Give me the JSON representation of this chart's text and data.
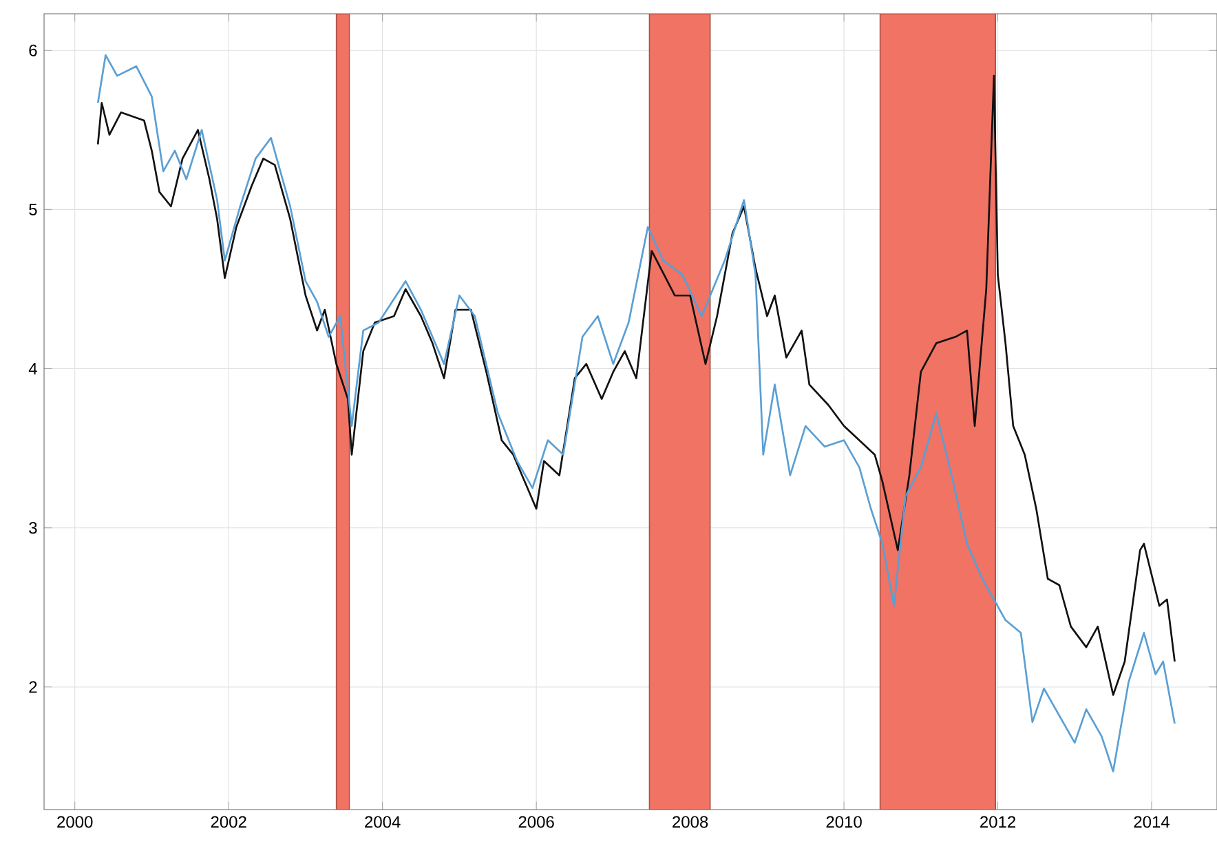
{
  "chart_data": {
    "type": "line",
    "xlim": [
      1999.6,
      2014.85
    ],
    "ylim": [
      1.23,
      6.23
    ],
    "xticks": [
      2000,
      2002,
      2004,
      2006,
      2008,
      2010,
      2012,
      2014
    ],
    "yticks": [
      2,
      3,
      4,
      5,
      6
    ],
    "grid": true,
    "bands": [
      {
        "axis": "x",
        "from": 2003.4,
        "to": 2003.57,
        "color": "#f07364"
      },
      {
        "axis": "x",
        "from": 2007.47,
        "to": 2008.26,
        "color": "#f07364"
      },
      {
        "axis": "x",
        "from": 2010.47,
        "to": 2011.97,
        "color": "#f07364"
      }
    ],
    "series": [
      {
        "color": "#111111",
        "x": [
          2000.3,
          2000.35,
          2000.45,
          2000.6,
          2000.9,
          2001.0,
          2001.1,
          2001.25,
          2001.4,
          2001.6,
          2001.75,
          2001.85,
          2001.95,
          2002.1,
          2002.3,
          2002.45,
          2002.6,
          2002.8,
          2003.0,
          2003.15,
          2003.25,
          2003.4,
          2003.55,
          2003.6,
          2003.75,
          2003.9,
          2004.15,
          2004.3,
          2004.5,
          2004.65,
          2004.8,
          2004.95,
          2005.15,
          2005.35,
          2005.55,
          2005.7,
          2005.85,
          2006.0,
          2006.1,
          2006.3,
          2006.5,
          2006.65,
          2006.85,
          2007.0,
          2007.15,
          2007.3,
          2007.5,
          2007.8,
          2008.0,
          2008.2,
          2008.35,
          2008.55,
          2008.7,
          2008.85,
          2009.0,
          2009.1,
          2009.25,
          2009.45,
          2009.55,
          2009.8,
          2010.0,
          2010.2,
          2010.4,
          2010.5,
          2010.7,
          2010.85,
          2011.0,
          2011.2,
          2011.45,
          2011.6,
          2011.7,
          2011.85,
          2011.95,
          2012.0,
          2012.1,
          2012.2,
          2012.35,
          2012.5,
          2012.65,
          2012.8,
          2012.95,
          2013.15,
          2013.3,
          2013.5,
          2013.65,
          2013.85,
          2013.9,
          2014.1,
          2014.2,
          2014.3
        ],
        "values": [
          5.41,
          5.67,
          5.47,
          5.61,
          5.56,
          5.37,
          5.11,
          5.02,
          5.32,
          5.5,
          5.19,
          4.94,
          4.57,
          4.89,
          5.15,
          5.32,
          5.28,
          4.94,
          4.46,
          4.24,
          4.37,
          4.03,
          3.81,
          3.46,
          4.11,
          4.29,
          4.33,
          4.5,
          4.33,
          4.16,
          3.94,
          4.37,
          4.37,
          3.98,
          3.55,
          3.46,
          3.29,
          3.12,
          3.42,
          3.33,
          3.94,
          4.03,
          3.81,
          3.98,
          4.11,
          3.94,
          4.74,
          4.46,
          4.46,
          4.03,
          4.33,
          4.85,
          5.02,
          4.63,
          4.33,
          4.46,
          4.07,
          4.24,
          3.9,
          3.77,
          3.64,
          3.55,
          3.46,
          3.29,
          2.86,
          3.33,
          3.98,
          4.16,
          4.2,
          4.24,
          3.64,
          4.5,
          5.84,
          4.59,
          4.16,
          3.64,
          3.46,
          3.12,
          2.68,
          2.64,
          2.38,
          2.25,
          2.38,
          1.95,
          2.16,
          2.86,
          2.9,
          2.51,
          2.55,
          2.16
        ]
      },
      {
        "color": "#5a9fd4",
        "x": [
          2000.3,
          2000.4,
          2000.55,
          2000.8,
          2001.0,
          2001.15,
          2001.3,
          2001.45,
          2001.65,
          2001.85,
          2001.95,
          2002.15,
          2002.35,
          2002.55,
          2002.8,
          2003.0,
          2003.15,
          2003.3,
          2003.45,
          2003.6,
          2003.75,
          2003.95,
          2004.3,
          2004.5,
          2004.8,
          2005.0,
          2005.2,
          2005.5,
          2005.75,
          2005.95,
          2006.15,
          2006.35,
          2006.6,
          2006.8,
          2007.0,
          2007.2,
          2007.45,
          2007.65,
          2007.9,
          2008.15,
          2008.45,
          2008.7,
          2008.85,
          2008.95,
          2009.1,
          2009.3,
          2009.5,
          2009.75,
          2010.0,
          2010.2,
          2010.35,
          2010.5,
          2010.65,
          2010.8,
          2011.0,
          2011.2,
          2011.4,
          2011.6,
          2011.8,
          2011.95,
          2012.1,
          2012.3,
          2012.45,
          2012.6,
          2012.8,
          2013.0,
          2013.15,
          2013.35,
          2013.5,
          2013.7,
          2013.9,
          2014.05,
          2014.15,
          2014.3
        ],
        "values": [
          5.67,
          5.97,
          5.84,
          5.9,
          5.71,
          5.24,
          5.37,
          5.19,
          5.5,
          5.06,
          4.68,
          5.02,
          5.32,
          5.45,
          5.02,
          4.55,
          4.42,
          4.2,
          4.33,
          3.64,
          4.24,
          4.29,
          4.55,
          4.37,
          4.03,
          4.46,
          4.33,
          3.72,
          3.42,
          3.25,
          3.55,
          3.46,
          4.2,
          4.33,
          4.03,
          4.29,
          4.89,
          4.68,
          4.59,
          4.33,
          4.68,
          5.06,
          4.59,
          3.46,
          3.9,
          3.33,
          3.64,
          3.51,
          3.55,
          3.38,
          3.12,
          2.9,
          2.51,
          3.2,
          3.38,
          3.72,
          3.33,
          2.9,
          2.68,
          2.55,
          2.42,
          2.34,
          1.78,
          1.99,
          1.82,
          1.65,
          1.86,
          1.69,
          1.47,
          2.03,
          2.34,
          2.08,
          2.16,
          1.77
        ]
      }
    ]
  }
}
